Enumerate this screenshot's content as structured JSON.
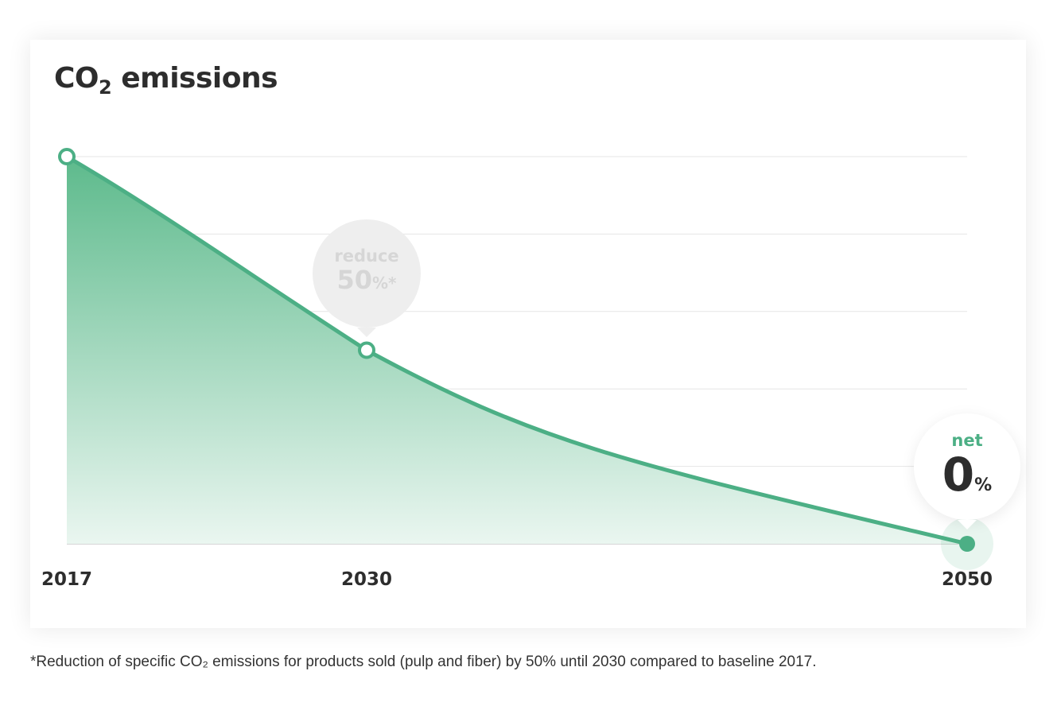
{
  "chart_data": {
    "type": "area",
    "title_main": "CO",
    "title_sub": "2",
    "title_rest": " emissions",
    "x": [
      2017,
      2030,
      2050
    ],
    "x_tick_labels": [
      "2017",
      "2030",
      "2050"
    ],
    "values": [
      100,
      50,
      0
    ],
    "ylim": [
      0,
      100
    ],
    "grid": true,
    "gridlines": [
      0,
      20,
      40,
      60,
      80,
      100
    ],
    "colors": {
      "line": "#4caf85",
      "fill_top": "#5dba8c",
      "fill_bottom": "#eaf6f0"
    },
    "annotations": [
      {
        "x": 2030,
        "line1": "reduce",
        "value": "50",
        "unit": "%*"
      },
      {
        "x": 2050,
        "line1": "net",
        "value": "0",
        "unit": "%"
      }
    ],
    "footnote": "*Reduction of specific CO₂ emissions for products sold (pulp and fiber) by 50% until 2030 compared to baseline 2017."
  }
}
